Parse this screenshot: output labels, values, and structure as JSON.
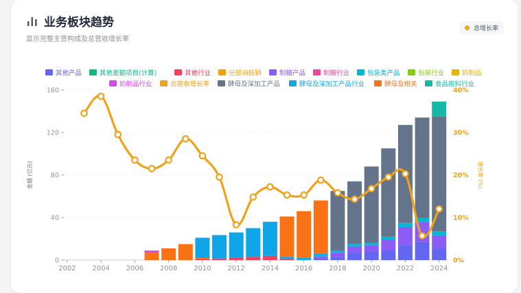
{
  "header": {
    "title": "业务板块趋势",
    "subtitle": "显示完整主营构成及总营收增长率",
    "legend_chip": "总增长率"
  },
  "colors": {
    "其他产品": "#6366f1",
    "其他差额项目(计算)": "#10b981",
    "其他行业": "#f43f5e",
    "分部间抵销": "#f59e0b",
    "制糖产品": "#8b5cf6",
    "制糖行业": "#ec4899",
    "包装类产品": "#06b6d4",
    "包装行业": "#84cc16",
    "奶制品": "#eab308",
    "奶制品行业": "#d946ef",
    "总营收增长率": "#f0a21a",
    "酵母及深加工产品": "#64748b",
    "酵母及深加工产品行业": "#0ea5e9",
    "酵母及相关": "#f97316",
    "食品原料行业": "#14b8a6"
  },
  "chart_data": {
    "type": "bar",
    "stacked": true,
    "legend": [
      "其他产品",
      "其他差额项目(计算)",
      "其他行业",
      "分部间抵销",
      "制糖产品",
      "制糖行业",
      "包装类产品",
      "包装行业",
      "奶制品",
      "奶制品行业",
      "总营收增长率",
      "酵母及深加工产品",
      "酵母及深加工产品行业",
      "酵母及相关",
      "食品原料行业"
    ],
    "legend_position": "top",
    "x": [
      2003,
      2004,
      2005,
      2006,
      2007,
      2008,
      2009,
      2010,
      2011,
      2012,
      2013,
      2014,
      2015,
      2016,
      2017,
      2018,
      2019,
      2020,
      2021,
      2022,
      2023,
      2024
    ],
    "x_ticks": [
      "2002",
      "2004",
      "2006",
      "2008",
      "2010",
      "2012",
      "2014",
      "2016",
      "2018",
      "2020",
      "2022",
      "2024"
    ],
    "xlim": [
      2001.8,
      2024.5
    ],
    "ylabel": "金额 (亿元)",
    "ylim": [
      0,
      160
    ],
    "y_ticks": [
      "0",
      "40",
      "80",
      "120",
      "160"
    ],
    "y2label": "增长率 (%)",
    "y2lim": [
      0,
      40
    ],
    "y2_ticks": [
      "0%",
      "10%",
      "20%",
      "30%",
      "40%"
    ],
    "grid": true,
    "series": [
      {
        "name": "其他产品",
        "x": [
          2017,
          2018,
          2019,
          2020,
          2021,
          2022,
          2023,
          2024
        ],
        "values": [
          1,
          3,
          7,
          8,
          9,
          14,
          17,
          11
        ]
      },
      {
        "name": "其他行业",
        "x": [
          2010,
          2011,
          2012,
          2013,
          2014,
          2015
        ],
        "values": [
          1,
          1.5,
          2,
          3,
          4,
          1
        ]
      },
      {
        "name": "制糖产品",
        "x": [
          2017,
          2018,
          2019,
          2020,
          2021,
          2022,
          2023,
          2024
        ],
        "values": [
          2,
          4,
          6,
          6,
          10,
          17,
          19,
          12
        ]
      },
      {
        "name": "包装类产品",
        "x": [
          2017,
          2018,
          2019,
          2020,
          2021,
          2022,
          2023,
          2024
        ],
        "values": [
          1,
          2,
          2,
          2,
          3,
          4,
          4,
          4
        ]
      },
      {
        "name": "酵母及相关",
        "x": [
          2007,
          2008,
          2009,
          2010
        ],
        "values": [
          7,
          11,
          15,
          1
        ]
      },
      {
        "name": "酵母及深加工产品行业",
        "x": [
          2010,
          2011,
          2012,
          2013,
          2014,
          2015,
          2016,
          2017
        ],
        "values": [
          19,
          22,
          24,
          27,
          32,
          2,
          2,
          2
        ]
      },
      {
        "name": "酵母及相关",
        "x": [
          2015,
          2016,
          2017
        ],
        "values": [
          38,
          44,
          50
        ]
      },
      {
        "name": "奶制品行业",
        "x": [
          2007
        ],
        "values": [
          2
        ]
      },
      {
        "name": "酵母及深加工产品",
        "x": [
          2018,
          2019,
          2020,
          2021,
          2022,
          2023,
          2024
        ],
        "values": [
          56,
          59,
          72,
          83,
          92,
          94,
          108
        ]
      },
      {
        "name": "食品原料行业",
        "x": [
          2024
        ],
        "values": [
          14
        ]
      },
      {
        "name": "总营收增长率",
        "type": "line",
        "axis": "right",
        "x": [
          2003,
          2004,
          2005,
          2006,
          2007,
          2008,
          2009,
          2010,
          2011,
          2012,
          2013,
          2014,
          2015,
          2016,
          2017,
          2018,
          2019,
          2020,
          2021,
          2022,
          2023,
          2024
        ],
        "values": [
          34.5,
          38.5,
          29.5,
          23.5,
          21.5,
          23.5,
          28.5,
          24.5,
          19.5,
          8.3,
          14.8,
          17.2,
          15.3,
          15.3,
          18.8,
          15.8,
          14.3,
          16.8,
          19.5,
          20.3,
          5.7,
          12
        ]
      }
    ]
  }
}
